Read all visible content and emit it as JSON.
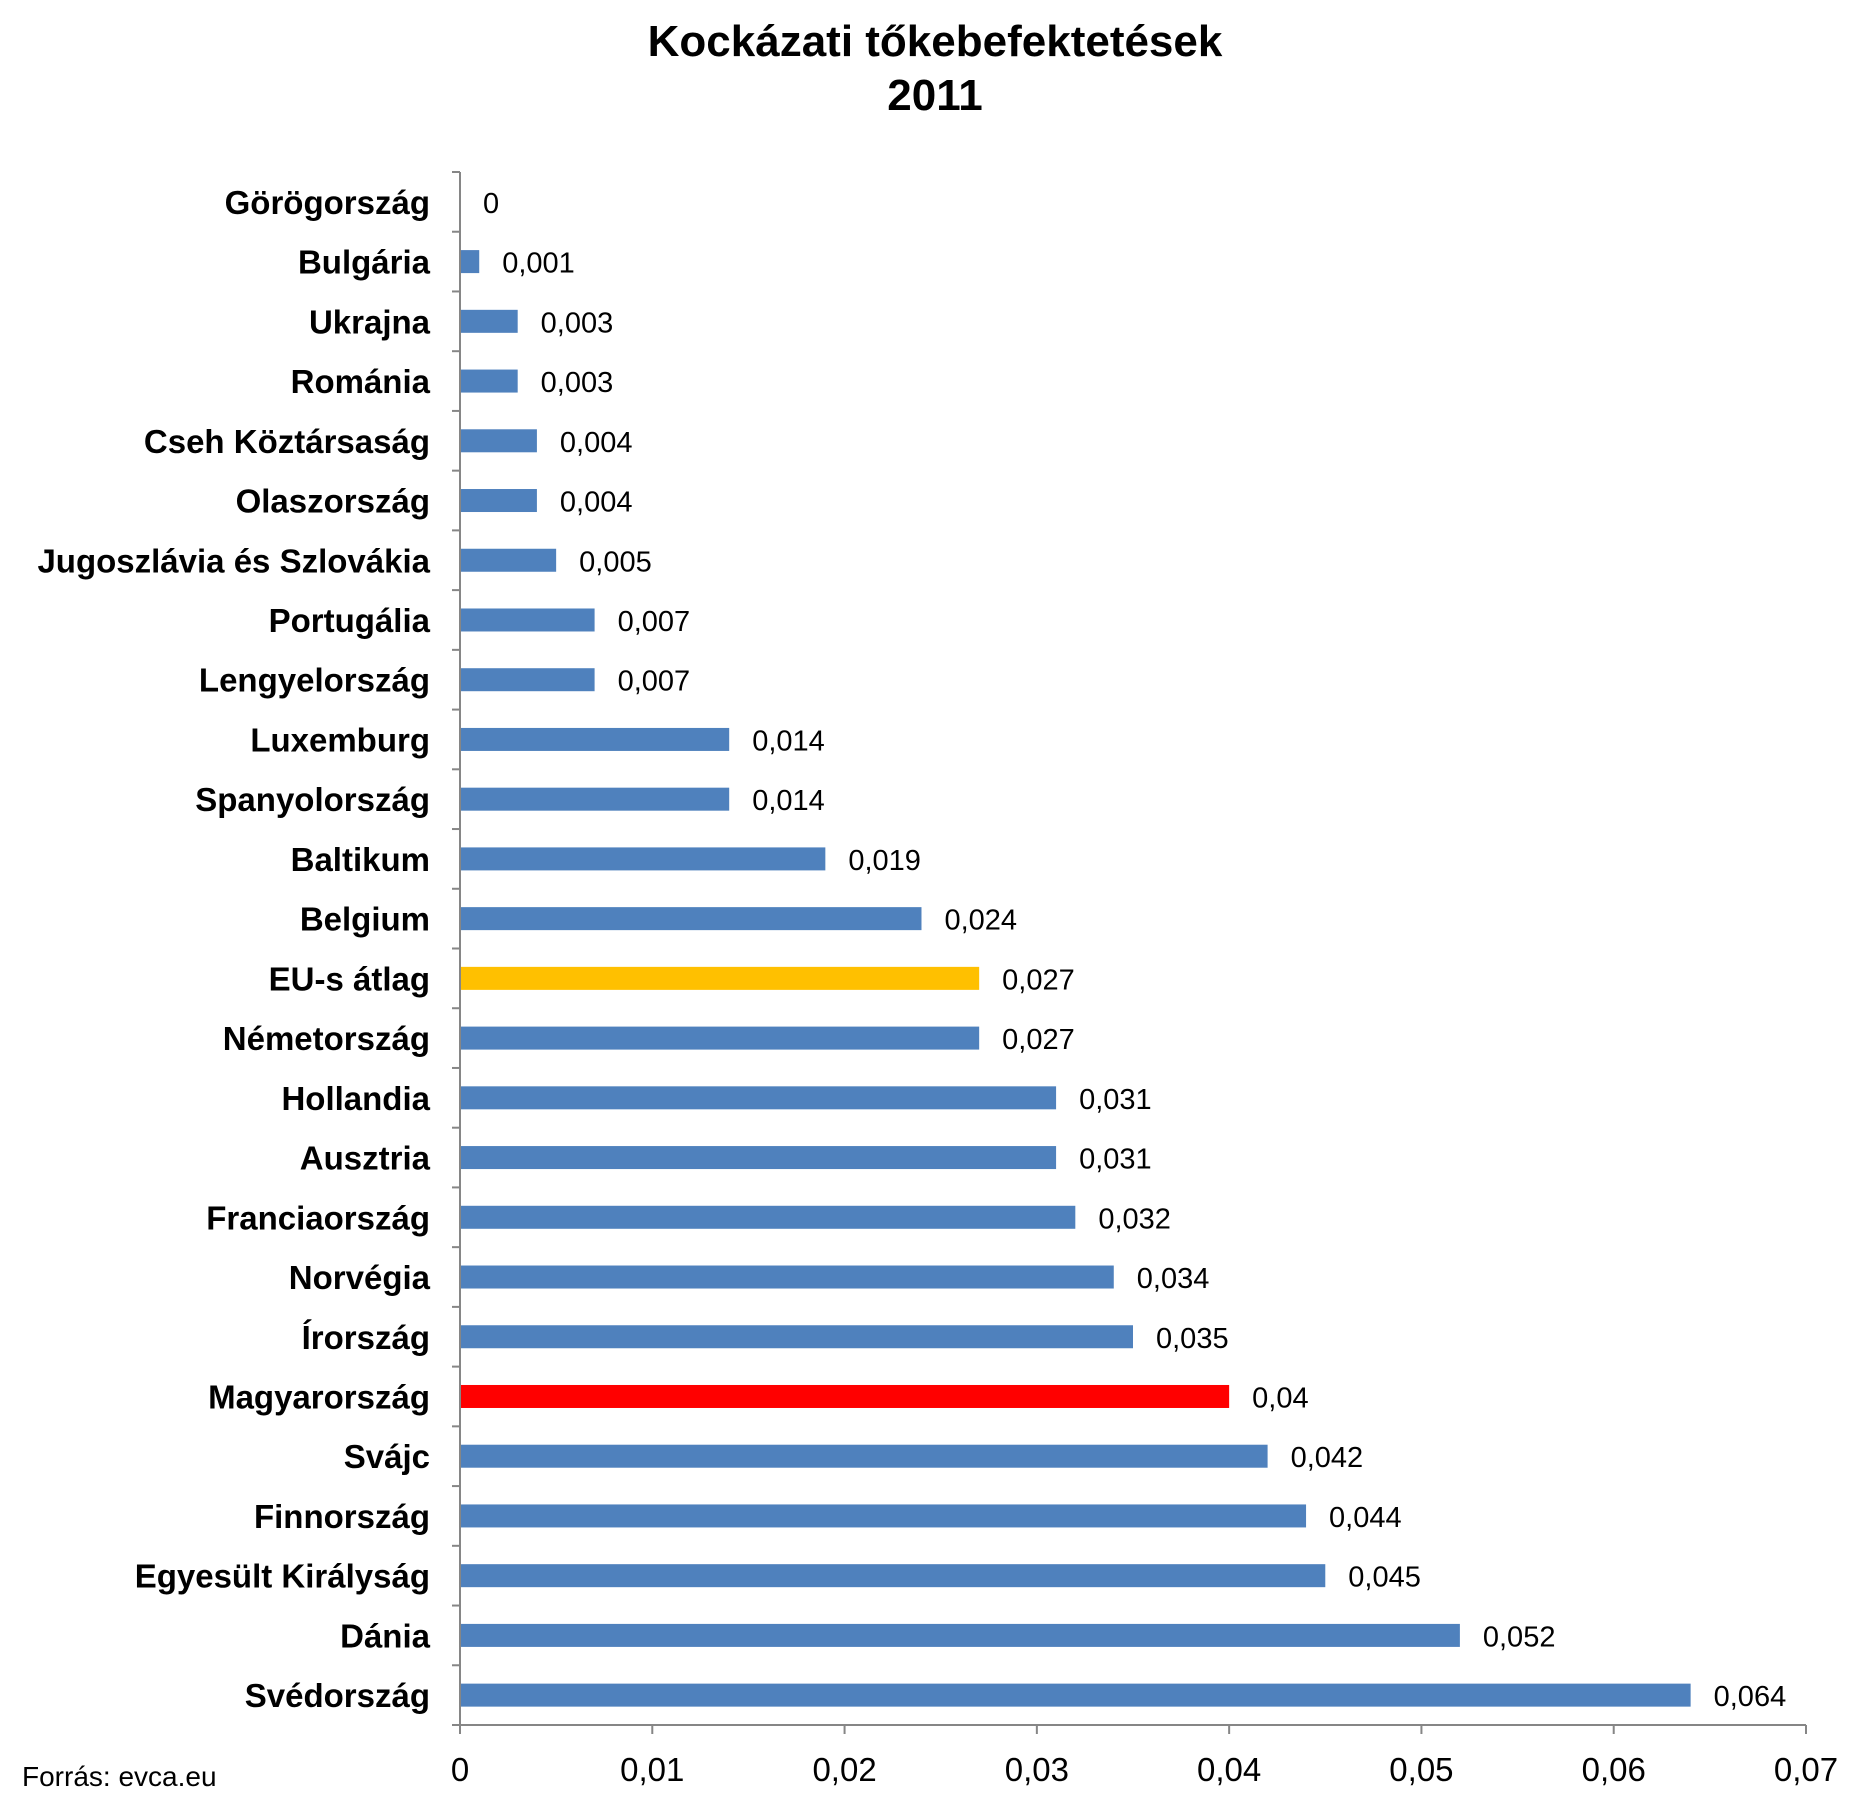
{
  "chart_data": {
    "type": "bar",
    "orientation": "horizontal",
    "title": "Kockázati tőkebefektetések",
    "subtitle": "2011",
    "categories": [
      "Görögország",
      "Bulgária",
      "Ukrajna",
      "Románia",
      "Cseh Köztársaság",
      "Olaszország",
      "Jugoszlávia és Szlovákia",
      "Portugália",
      "Lengyelország",
      "Luxemburg",
      "Spanyolország",
      "Baltikum",
      "Belgium",
      "EU-s átlag",
      "Németország",
      "Hollandia",
      "Ausztria",
      "Franciaország",
      "Norvégia",
      "Írország",
      "Magyarország",
      "Svájc",
      "Finnország",
      "Egyesült Királyság",
      "Dánia",
      "Svédország"
    ],
    "values": [
      0,
      0.001,
      0.003,
      0.003,
      0.004,
      0.004,
      0.005,
      0.007,
      0.007,
      0.014,
      0.014,
      0.019,
      0.024,
      0.027,
      0.027,
      0.031,
      0.031,
      0.032,
      0.034,
      0.035,
      0.04,
      0.042,
      0.044,
      0.045,
      0.052,
      0.064
    ],
    "value_labels": [
      "0",
      "0,001",
      "0,003",
      "0,003",
      "0,004",
      "0,004",
      "0,005",
      "0,007",
      "0,007",
      "0,014",
      "0,014",
      "0,019",
      "0,024",
      "0,027",
      "0,027",
      "0,031",
      "0,031",
      "0,032",
      "0,034",
      "0,035",
      "0,04",
      "0,042",
      "0,044",
      "0,045",
      "0,052",
      "0,064"
    ],
    "colors": {
      "default": "#4F81BD",
      "EU-s átlag": "#FFC000",
      "Magyarország": "#FF0000"
    },
    "xlim": [
      0,
      0.07
    ],
    "x_ticks": [
      0,
      0.01,
      0.02,
      0.03,
      0.04,
      0.05,
      0.06,
      0.07
    ],
    "x_tick_labels": [
      "0",
      "0,01",
      "0,02",
      "0,03",
      "0,04",
      "0,05",
      "0,06",
      "0,07"
    ],
    "xlabel": "",
    "ylabel": "",
    "grid": false,
    "legend": "none",
    "source": "Forrás: evca.eu"
  }
}
